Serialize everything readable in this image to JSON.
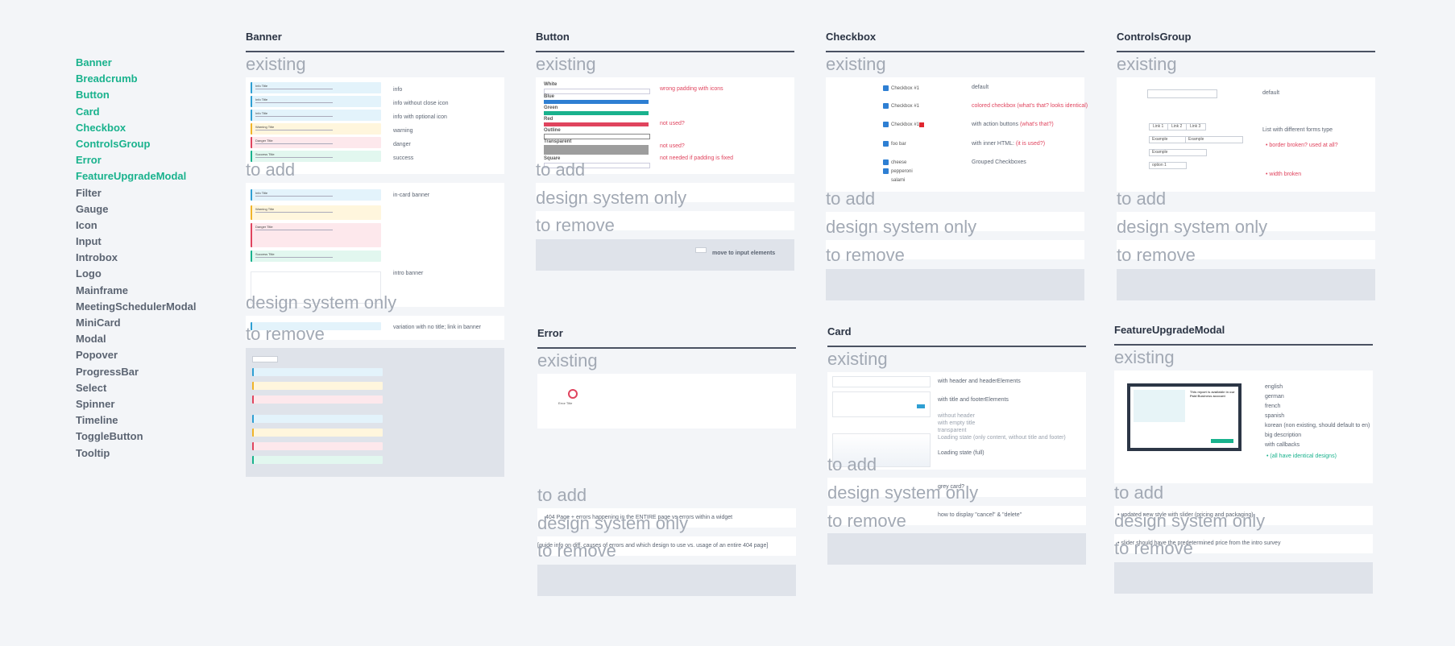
{
  "nav": {
    "items": [
      {
        "label": "Banner",
        "done": true
      },
      {
        "label": "Breadcrumb",
        "done": true
      },
      {
        "label": "Button",
        "done": true
      },
      {
        "label": "Card",
        "done": true
      },
      {
        "label": "Checkbox",
        "done": true
      },
      {
        "label": "ControlsGroup",
        "done": true
      },
      {
        "label": "Error",
        "done": true
      },
      {
        "label": "FeatureUpgradeModal",
        "done": true
      },
      {
        "label": "Filter",
        "done": false
      },
      {
        "label": "Gauge",
        "done": false
      },
      {
        "label": "Icon",
        "done": false
      },
      {
        "label": "Input",
        "done": false
      },
      {
        "label": "Introbox",
        "done": false
      },
      {
        "label": "Logo",
        "done": false
      },
      {
        "label": "Mainframe",
        "done": false
      },
      {
        "label": "MeetingSchedulerModal",
        "done": false
      },
      {
        "label": "MiniCard",
        "done": false
      },
      {
        "label": "Modal",
        "done": false
      },
      {
        "label": "Popover",
        "done": false
      },
      {
        "label": "ProgressBar",
        "done": false
      },
      {
        "label": "Select",
        "done": false
      },
      {
        "label": "Spinner",
        "done": false
      },
      {
        "label": "Timeline",
        "done": false
      },
      {
        "label": "ToggleButton",
        "done": false
      },
      {
        "label": "Tooltip",
        "done": false
      }
    ]
  },
  "sections": {
    "existing": "existing",
    "to_add": "to add",
    "design_system_only": "design system only",
    "to_remove": "to remove"
  },
  "banner": {
    "title": "Banner",
    "notes": {
      "info": "info",
      "info_close": "info without close icon",
      "info_optional": "info with optional icon",
      "warning": "warning",
      "danger": "danger",
      "success": "success",
      "in_card": "in-card banner",
      "intro": "intro banner",
      "variation": "variation with no title; link in banner"
    }
  },
  "button": {
    "title": "Button",
    "groups": [
      "White",
      "Blue",
      "Green",
      "Red",
      "Outline",
      "Transparent",
      "Square"
    ],
    "notes": {
      "wrong_padding": "wrong padding with icons",
      "not_used_1": "not used?",
      "not_used_2": "not used?",
      "not_needed": "not needed if padding is fixed",
      "move": "move to input elements"
    }
  },
  "checkbox": {
    "title": "Checkbox",
    "items": {
      "cb1": "Checkbox #1",
      "cb2": "Checkbox #1",
      "cb3": "Checkbox #1",
      "foo_bar": "foo bar",
      "cheese": "cheese",
      "pepperoni": "pepperoni",
      "salami": "salami"
    },
    "notes": {
      "default": "default",
      "colored": "colored checkbox (what's that? looks identical)",
      "action_buttons": "with action buttons",
      "action_buttons_q": "(what's that?)",
      "inner_html": "with inner HTML",
      "inner_html_q": "(it is used?)",
      "grouped": "Grouped Checkboxes"
    }
  },
  "controls": {
    "title": "ControlsGroup",
    "links": [
      "Link 1",
      "Link 2",
      "Link 3"
    ],
    "inputs": [
      "Example",
      "Example",
      "Example",
      "option 1"
    ],
    "notes": {
      "default": "default",
      "list_forms": "List with different forms type",
      "border_broken": "border broken? used at all?",
      "width_broken": "width broken"
    }
  },
  "error": {
    "title": "Error",
    "preview_title": "Error Title",
    "notes": {
      "add": "404 Page + errors happening in the ENTIRE page vs errors within a widget",
      "ds": "[guide info on diff. causes of errors and which design to use vs. usage of an entire 404 page]"
    }
  },
  "card": {
    "title": "Card",
    "notes": {
      "header": "with header and headerElements",
      "title_footer": "with title and footerElements",
      "without_header": "without header",
      "empty_title": "with empty title",
      "transparent": "transparent",
      "loading": "Loading state (only content, without title and footer)",
      "loading_full": "Loading state (full)",
      "grey_card": "grey card?",
      "cancel_delete": "how to display \"cancel\" & \"delete\""
    }
  },
  "fum": {
    "title": "FeatureUpgradeModal",
    "modal_heading": "This report is available in our Paid Business account",
    "notes": {
      "english": "english",
      "german": "german",
      "french": "french",
      "spanish": "spanish",
      "korean": "korean (non existing, should default to en)",
      "big_description": "big description",
      "with_callbacks": "with callbacks",
      "identical": "(all have identical designs)",
      "add": "updated new style with slider (pricing and packaging)",
      "ds": "slider should have the predetermined price from the intro survey"
    }
  },
  "colors": {
    "accent": "#19b28d",
    "muted_nav": "#5b6472",
    "red": "#e0445e",
    "grey_label": "#a2a9b4",
    "blue": "#2e7fd3"
  }
}
